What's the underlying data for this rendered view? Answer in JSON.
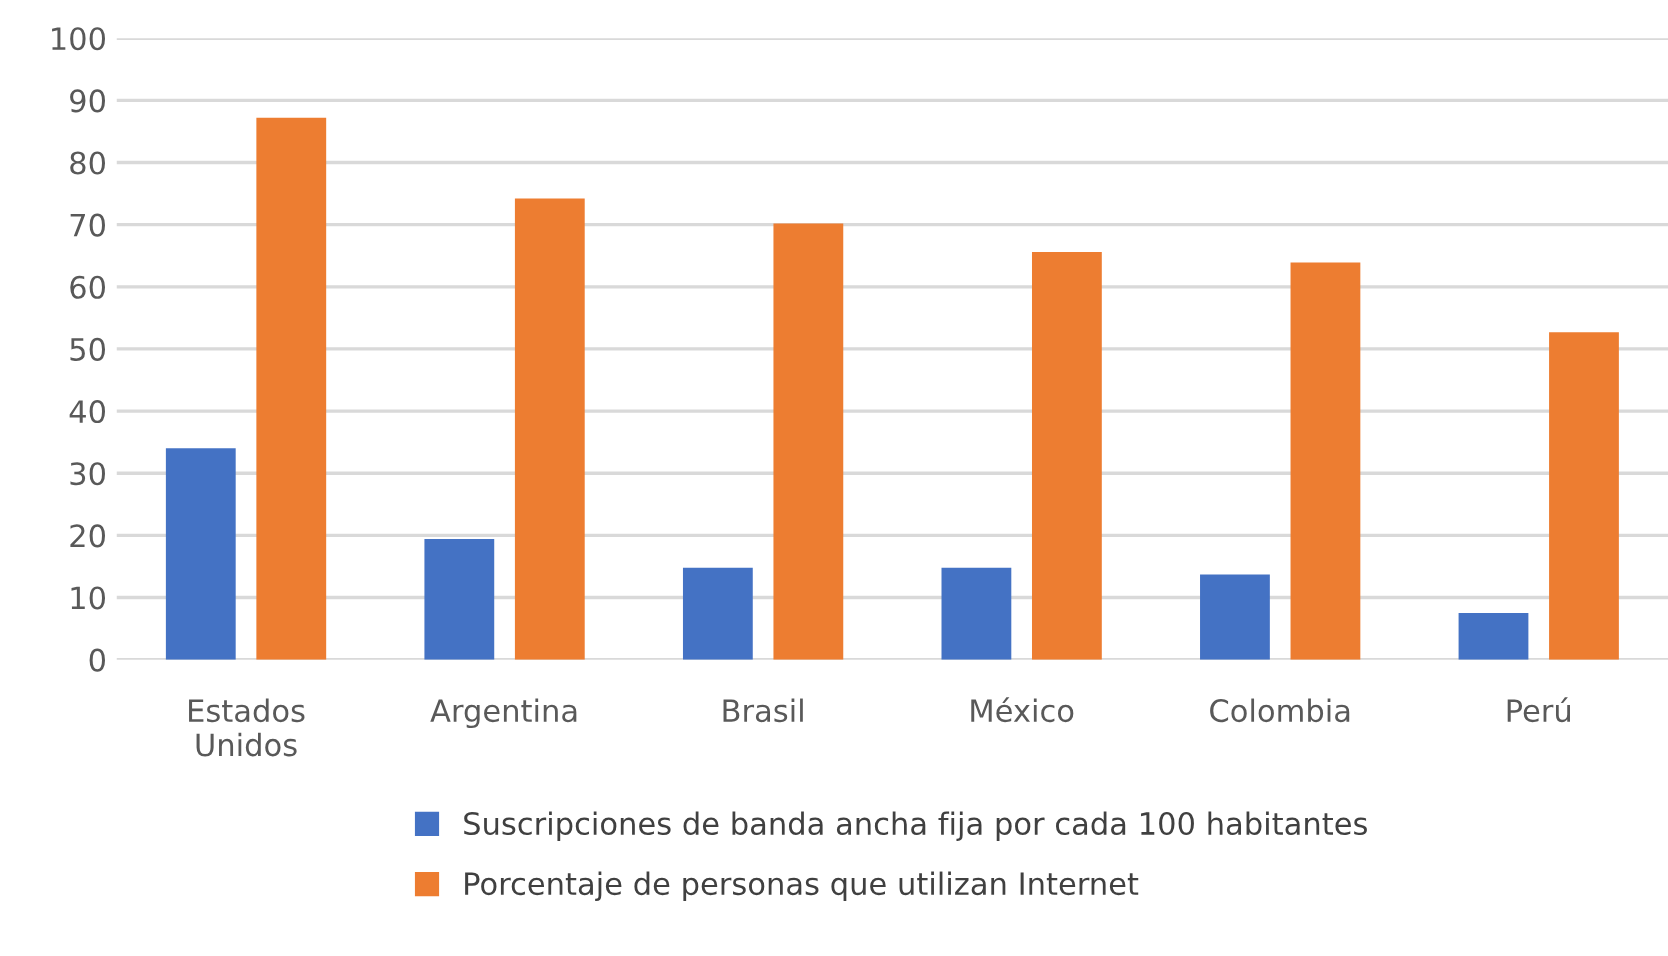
{
  "chart_data": {
    "type": "bar",
    "categories": [
      "Estados\nUnidos",
      "Argentina",
      "Brasil",
      "México",
      "Colombia",
      "Perú"
    ],
    "series": [
      {
        "name": "Suscripciones de banda ancha fija por cada 100 habitantes",
        "color": "#4472c4",
        "values": [
          34,
          19.4,
          14.8,
          14.8,
          13.7,
          7.5
        ]
      },
      {
        "name": "Porcentaje de personas que utilizan Internet",
        "color": "#ed7d31",
        "values": [
          87.2,
          74.2,
          70.2,
          65.6,
          63.9,
          52.7
        ]
      }
    ],
    "ylim": [
      0,
      100
    ],
    "yticks": [
      0,
      10,
      20,
      30,
      40,
      50,
      60,
      70,
      80,
      90,
      100
    ],
    "grid": "y",
    "legend": "bottom"
  }
}
